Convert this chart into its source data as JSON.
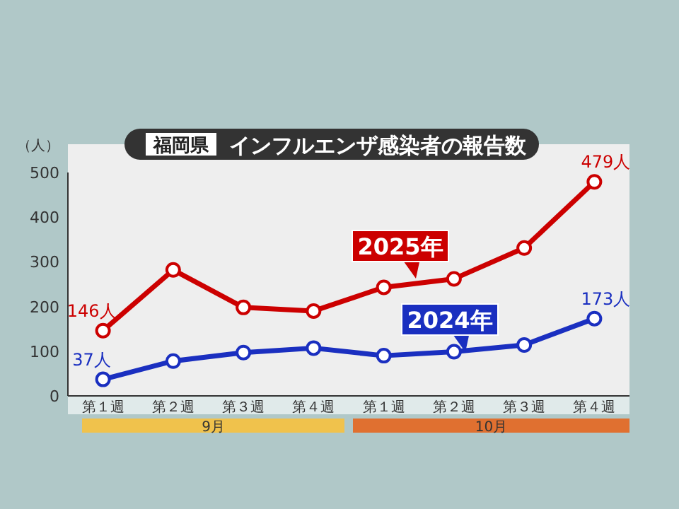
{
  "chart_data": {
    "type": "line",
    "title": "福岡県",
    "subtitle": "インフルエンザ感染者の報告数",
    "ylabel": "（人）",
    "categories": [
      "第１週",
      "第２週",
      "第３週",
      "第４週",
      "第１週",
      "第２週",
      "第３週",
      "第４週"
    ],
    "series": [
      {
        "name": "2025年",
        "color": "#cc0000",
        "values": [
          146,
          282,
          198,
          190,
          243,
          262,
          331,
          479
        ],
        "value_labels": [
          "146人",
          null,
          null,
          null,
          null,
          null,
          null,
          "479人"
        ]
      },
      {
        "name": "2024年",
        "color": "#1a2fc0",
        "values": [
          37,
          78,
          97,
          107,
          90,
          99,
          114,
          173
        ],
        "value_labels": [
          "37人",
          null,
          null,
          null,
          null,
          null,
          null,
          "173人"
        ]
      }
    ],
    "annotations": [
      "9月",
      "10月"
    ],
    "ylim": [
      0,
      500
    ],
    "yticks": [
      0,
      100,
      200,
      300,
      400,
      500
    ],
    "grid": false,
    "marker": "circle",
    "line_style": "solid"
  }
}
